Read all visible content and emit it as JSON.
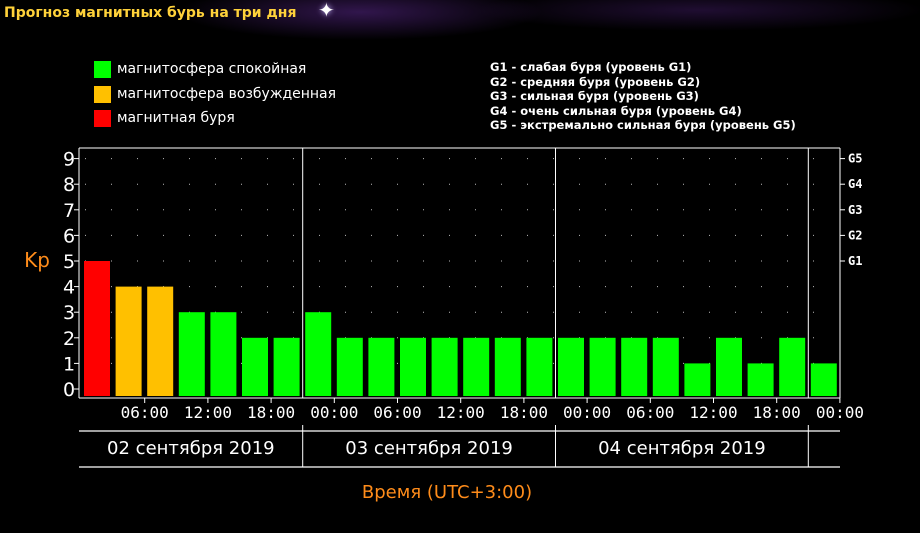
{
  "title": "Прогноз магнитных бурь на три дня",
  "legend": [
    {
      "label": "магнитосфера спокойная",
      "color": "#00ff00"
    },
    {
      "label": "магнитосфера возбужденная",
      "color": "#ffc000"
    },
    {
      "label": "магнитная буря",
      "color": "#ff0000"
    }
  ],
  "storm_levels": [
    "G1 - слабая буря (уровень G1)",
    "G2 - средняя буря (уровень G2)",
    "G3 - сильная буря (уровень G3)",
    "G4 - очень сильная буря (уровень G4)",
    "G5 - экстремально сильная буря (уровень G5)"
  ],
  "chart_data": {
    "type": "bar",
    "ylabel": "Kp",
    "xlabel": "Время (UTC+3:00)",
    "ylim": [
      0,
      9
    ],
    "yticks": [
      "0",
      "1",
      "2",
      "3",
      "4",
      "5",
      "6",
      "7",
      "8",
      "9"
    ],
    "right_ticks": [
      {
        "y": 5,
        "label": "G1"
      },
      {
        "y": 6,
        "label": "G2"
      },
      {
        "y": 7,
        "label": "G3"
      },
      {
        "y": 8,
        "label": "G4"
      },
      {
        "y": 9,
        "label": "G5"
      }
    ],
    "xticks": [
      "06:00",
      "12:00",
      "18:00",
      "00:00",
      "06:00",
      "12:00",
      "18:00",
      "00:00",
      "06:00",
      "12:00",
      "18:00",
      "00:00"
    ],
    "days": [
      "02 сентября 2019",
      "03 сентября 2019",
      "04 сентября 2019"
    ],
    "values": [
      5,
      4,
      4,
      3,
      3,
      2,
      2,
      3,
      2,
      2,
      2,
      2,
      2,
      2,
      2,
      2,
      2,
      2,
      2,
      1,
      2,
      1,
      2,
      1
    ],
    "colors": {
      "quiet": "#00ff00",
      "active": "#ffc000",
      "storm": "#ff0000"
    },
    "grid": true
  }
}
